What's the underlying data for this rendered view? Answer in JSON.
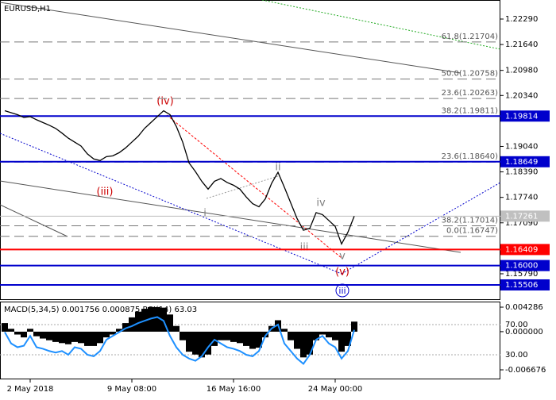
{
  "chart_data": [
    {
      "type": "line",
      "title": "EURUSD,H1",
      "categories": [
        null,
        null,
        null,
        null,
        "2 May 2018",
        null,
        null,
        null,
        null,
        null,
        null,
        null,
        null,
        null,
        null,
        null,
        null,
        null,
        null,
        null,
        "9 May 08:00",
        null,
        null,
        null,
        null,
        null,
        null,
        null,
        null,
        null,
        null,
        null,
        null,
        null,
        null,
        null,
        "16 May 16:00",
        null,
        null,
        null,
        null,
        null,
        null,
        null,
        null,
        null,
        null,
        null,
        null,
        null,
        null,
        null,
        "24 May 00:00",
        null,
        null,
        null
      ],
      "values": [
        1.1995,
        1.199,
        1.1985,
        1.1978,
        1.198,
        1.1972,
        1.1965,
        1.1958,
        1.195,
        1.1938,
        1.1925,
        1.1915,
        1.1905,
        1.1885,
        1.1872,
        1.1868,
        1.1878,
        1.188,
        1.1888,
        1.19,
        1.1915,
        1.193,
        1.195,
        1.1965,
        1.198,
        1.1995,
        1.1985,
        1.1955,
        1.1915,
        1.1862,
        1.184,
        1.1815,
        1.1795,
        1.1815,
        1.1822,
        1.1812,
        1.1805,
        1.1795,
        1.1775,
        1.1758,
        1.175,
        1.177,
        1.181,
        1.1838,
        1.18,
        1.176,
        1.172,
        1.169,
        1.1695,
        1.1735,
        1.173,
        1.1715,
        1.17,
        1.1655,
        1.1685,
        1.1726
      ],
      "color": "#000000",
      "ylim": [
        1.15121,
        1.22776
      ],
      "yticks": [
        {
          "value": 1.2229,
          "label": "1.22290"
        },
        {
          "value": 1.2164,
          "label": "1.21640"
        },
        {
          "value": 1.2098,
          "label": "1.20980"
        },
        {
          "value": 1.2034,
          "label": "1.20340"
        },
        {
          "value": 1.1904,
          "label": "1.19040"
        },
        {
          "value": 1.1839,
          "label": "1.18390"
        },
        {
          "value": 1.1774,
          "label": "1.17740"
        },
        {
          "value": 1.1709,
          "label": "1.17090"
        },
        {
          "value": 1.1579,
          "label": "1.15790"
        }
      ],
      "levels": [
        {
          "value": 1.19814,
          "label": "1.19814",
          "color": "#0000cc"
        },
        {
          "value": 1.18649,
          "label": "1.18649",
          "color": "#0000cc"
        },
        {
          "value": 1.16409,
          "label": "1.16409",
          "color": "#ff0000"
        },
        {
          "value": 1.16,
          "label": "1.16000",
          "color": "#0000cc"
        },
        {
          "value": 1.15506,
          "label": "1.15506",
          "color": "#0000cc"
        }
      ],
      "last_price": {
        "value": 1.17261,
        "label": "1.17261",
        "color": "#c0c0c0"
      },
      "fib_levels": [
        {
          "value": 1.21704,
          "label": "61.8(1.21704)"
        },
        {
          "value": 1.20758,
          "label": "50.0(1.20758)"
        },
        {
          "value": 1.20263,
          "label": "23.6(1.20263)"
        },
        {
          "value": 1.19811,
          "label": "38.2(1.19811)"
        },
        {
          "value": 1.1864,
          "label": "23.6(1.18640)"
        },
        {
          "value": 1.17014,
          "label": "38.2(1.17014)"
        },
        {
          "value": 1.16747,
          "label": "0.0(1.16747)"
        }
      ],
      "annotations": [
        {
          "text": "(iv)",
          "color": "#cc0000"
        },
        {
          "text": "(iii)",
          "color": "#cc0000"
        },
        {
          "text": "(v)",
          "color": "#cc0000"
        },
        {
          "text": "ii",
          "color": "#808080"
        },
        {
          "text": "i",
          "color": "#808080"
        },
        {
          "text": "iv",
          "color": "#808080"
        },
        {
          "text": "iii",
          "color": "#808080"
        },
        {
          "text": "v",
          "color": "#808080"
        },
        {
          "text": "iii",
          "color": "#0000cc"
        }
      ]
    },
    {
      "type": "bar",
      "title": "MACD(5,34,5) 0.001756 0.000875 RSI(14) 63.03",
      "values": [
        0.0015,
        0.0005,
        -0.0005,
        -0.001,
        0.0005,
        -0.0008,
        -0.0012,
        -0.0015,
        -0.0018,
        -0.002,
        -0.0022,
        -0.0018,
        -0.002,
        -0.0025,
        -0.0025,
        -0.002,
        -0.001,
        -0.0005,
        0.0005,
        0.0015,
        0.0025,
        0.0035,
        0.004,
        0.0043,
        0.0043,
        0.0042,
        0.003,
        0.001,
        -0.0015,
        -0.0035,
        -0.004,
        -0.0045,
        -0.004,
        -0.0025,
        -0.0015,
        -0.0015,
        -0.0018,
        -0.002,
        -0.0025,
        -0.003,
        -0.0028,
        -0.001,
        0.001,
        0.002,
        0.0005,
        -0.0015,
        -0.003,
        -0.0045,
        -0.004,
        -0.0015,
        -0.0005,
        -0.001,
        -0.0015,
        -0.0035,
        -0.0025,
        0.001756
      ],
      "color": "#000000",
      "ylim": [
        -0.00834,
        0.00526
      ],
      "yticks": [
        {
          "value": 0.004286,
          "label": "0.004286"
        },
        {
          "value": 0,
          "label": "0.000000"
        },
        {
          "value": -0.006676,
          "label": "-0.006676"
        }
      ],
      "series": [
        {
          "name": "RSI(14)",
          "color": "#1e90ff",
          "axis": "y2",
          "values": [
            60,
            45,
            40,
            42,
            55,
            40,
            38,
            35,
            33,
            35,
            30,
            40,
            38,
            30,
            28,
            35,
            50,
            55,
            60,
            65,
            68,
            72,
            75,
            78,
            80,
            75,
            55,
            40,
            30,
            25,
            22,
            28,
            40,
            50,
            45,
            40,
            38,
            35,
            30,
            28,
            35,
            55,
            65,
            70,
            45,
            35,
            25,
            18,
            30,
            50,
            55,
            45,
            40,
            25,
            35,
            63.03
          ]
        }
      ],
      "y2lim": [
        -2.6,
        100.5
      ],
      "y2ticks": [
        {
          "value": 70,
          "label": "70.00"
        },
        {
          "value": 30,
          "label": "30.00"
        }
      ]
    }
  ]
}
